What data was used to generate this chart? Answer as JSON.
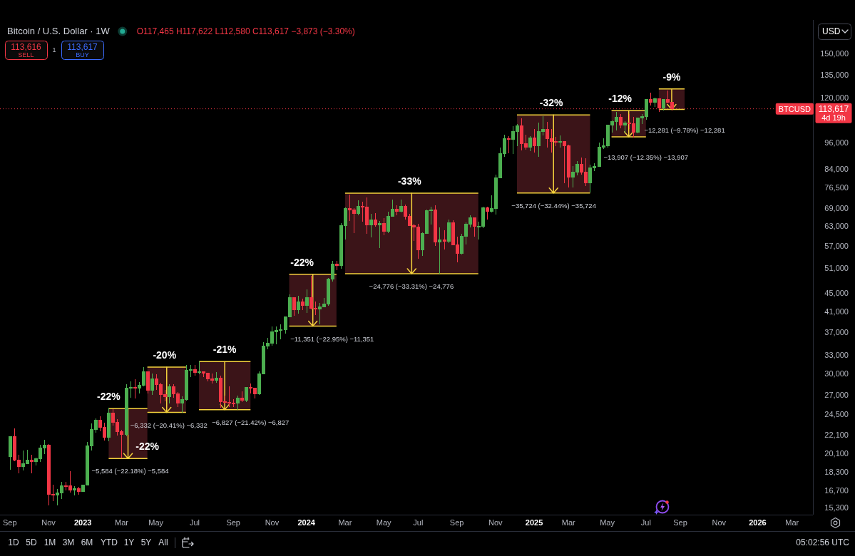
{
  "chart_data": {
    "type": "candlestick",
    "title": "Bitcoin / U.S. Dollar · 1W",
    "subtitle": "O117,465 H117,622 L112,580 C113,617 −3,873 (−3.30%)",
    "log": true,
    "xlim": [
      "2022-08-20",
      "2026-04-05"
    ],
    "xticks": [
      {
        "value": "2022-09-05",
        "label": "Sep"
      },
      {
        "value": "2022-11-07",
        "label": "Nov"
      },
      {
        "value": "2023-01-02",
        "label": "2023"
      },
      {
        "value": "2023-03-06",
        "label": "Mar"
      },
      {
        "value": "2023-05-01",
        "label": "May"
      },
      {
        "value": "2023-07-03",
        "label": "Jul"
      },
      {
        "value": "2023-09-04",
        "label": "Sep"
      },
      {
        "value": "2023-11-06",
        "label": "Nov"
      },
      {
        "value": "2024-01-01",
        "label": "2024"
      },
      {
        "value": "2024-03-04",
        "label": "Mar"
      },
      {
        "value": "2024-05-06",
        "label": "May"
      },
      {
        "value": "2024-07-01",
        "label": "Jul"
      },
      {
        "value": "2024-09-02",
        "label": "Sep"
      },
      {
        "value": "2024-11-04",
        "label": "Nov"
      },
      {
        "value": "2025-01-06",
        "label": "2025"
      },
      {
        "value": "2025-03-03",
        "label": "Mar"
      },
      {
        "value": "2025-05-05",
        "label": "May"
      },
      {
        "value": "2025-07-07",
        "label": "Jul"
      },
      {
        "value": "2025-09-01",
        "label": "Sep"
      },
      {
        "value": "2025-11-03",
        "label": "Nov"
      },
      {
        "value": "2026-01-05",
        "label": "2026"
      },
      {
        "value": "2026-03-02",
        "label": "Mar"
      }
    ],
    "ylim": [
      14770,
      177600
    ],
    "yticks": [
      {
        "value": 15300,
        "label": "15,300"
      },
      {
        "value": 16700,
        "label": "16,700"
      },
      {
        "value": 18300,
        "label": "18,300"
      },
      {
        "value": 20100,
        "label": "20,100"
      },
      {
        "value": 22100,
        "label": "22,100"
      },
      {
        "value": 24500,
        "label": "24,500"
      },
      {
        "value": 27000,
        "label": "27,000"
      },
      {
        "value": 30000,
        "label": "30,000"
      },
      {
        "value": 33000,
        "label": "33,000"
      },
      {
        "value": 37000,
        "label": "37,000"
      },
      {
        "value": 41000,
        "label": "41,000"
      },
      {
        "value": 45000,
        "label": "45,000"
      },
      {
        "value": 51000,
        "label": "51,000"
      },
      {
        "value": 57000,
        "label": "57,000"
      },
      {
        "value": 63000,
        "label": "63,000"
      },
      {
        "value": 69000,
        "label": "69,000"
      },
      {
        "value": 76500,
        "label": "76,500"
      },
      {
        "value": 84000,
        "label": "84,000"
      },
      {
        "value": 96000,
        "label": "96,000"
      },
      {
        "value": 120000,
        "label": "120,000"
      },
      {
        "value": 135000,
        "label": "135,000"
      },
      {
        "value": 150000,
        "label": "150,000"
      }
    ],
    "series": [
      {
        "type": "line",
        "color": "#f5d33d",
        "x": [
          "2023-02-13",
          "2023-04-17"
        ],
        "values": [
          25176,
          25176
        ],
        "lower": [
          19592,
          19592
        ],
        "upper": [
          25176,
          25176
        ]
      },
      {
        "type": "line",
        "color": "#f5d33d",
        "x": [
          "2023-02-13",
          "2023-04-17"
        ],
        "values": [
          19592,
          19592
        ]
      },
      {
        "type": "line",
        "color": "#f5d33d",
        "x": [
          "2023-04-17",
          "2023-06-19"
        ],
        "values": [
          31024,
          31024
        ],
        "lower": [
          24692,
          24692
        ],
        "upper": [
          31024,
          31024
        ]
      },
      {
        "type": "line",
        "color": "#f5d33d",
        "x": [
          "2023-04-17",
          "2023-06-19"
        ],
        "values": [
          24692,
          24692
        ]
      },
      {
        "type": "line",
        "color": "#f5d33d",
        "x": [
          "2023-07-10",
          "2023-10-02"
        ],
        "values": [
          31872,
          31872
        ],
        "lower": [
          25045,
          25045
        ],
        "upper": [
          31872,
          31872
        ]
      },
      {
        "type": "line",
        "color": "#f5d33d",
        "x": [
          "2023-07-10",
          "2023-10-02"
        ],
        "values": [
          25045,
          25045
        ]
      },
      {
        "type": "line",
        "color": "#f5d33d",
        "x": [
          "2023-12-04",
          "2024-02-19"
        ],
        "values": [
          49460,
          49460
        ],
        "lower": [
          38109,
          38109
        ],
        "upper": [
          49460,
          49460
        ]
      },
      {
        "type": "line",
        "color": "#f5d33d",
        "x": [
          "2023-12-04",
          "2024-02-19"
        ],
        "values": [
          38109,
          38109
        ]
      },
      {
        "type": "line",
        "color": "#f5d33d",
        "x": [
          "2024-03-04",
          "2024-10-07"
        ],
        "values": [
          74380,
          74380
        ],
        "lower": [
          49604,
          49604
        ],
        "upper": [
          74380,
          74380
        ]
      },
      {
        "type": "line",
        "color": "#f5d33d",
        "x": [
          "2024-03-04",
          "2024-10-07"
        ],
        "values": [
          49604,
          49604
        ]
      },
      {
        "type": "line",
        "color": "#f5d33d",
        "x": [
          "2024-12-09",
          "2025-04-07"
        ],
        "values": [
          110123,
          110123
        ],
        "lower": [
          74399,
          74399
        ],
        "upper": [
          110123,
          110123
        ]
      },
      {
        "type": "line",
        "color": "#f5d33d",
        "x": [
          "2024-12-09",
          "2025-04-07"
        ],
        "values": [
          74399,
          74399
        ]
      },
      {
        "type": "line",
        "color": "#f5d33d",
        "x": [
          "2025-05-12",
          "2025-07-07"
        ],
        "values": [
          112607,
          112607
        ],
        "lower": [
          98700,
          98700
        ],
        "upper": [
          112607,
          112607
        ]
      },
      {
        "type": "line",
        "color": "#f5d33d",
        "x": [
          "2025-05-12",
          "2025-07-07"
        ],
        "values": [
          98700,
          98700
        ]
      },
      {
        "type": "line",
        "color": "#f5d33d",
        "x": [
          "2025-07-28",
          "2025-09-08"
        ],
        "values": [
          125573,
          125573
        ],
        "lower": [
          113292,
          113292
        ],
        "upper": [
          125573,
          125573
        ]
      },
      {
        "type": "line",
        "color": "#f5d33d",
        "x": [
          "2025-07-28",
          "2025-09-08"
        ],
        "values": [
          113292,
          113292
        ]
      },
      {
        "x": [
          "2022-09-05",
          "2022-09-12",
          "2022-09-19",
          "2022-09-26",
          "2022-10-03",
          "2022-10-10",
          "2022-10-17",
          "2022-10-24",
          "2022-10-31",
          "2022-11-07",
          "2022-11-14",
          "2022-11-21",
          "2022-11-28",
          "2022-12-05",
          "2022-12-12",
          "2022-12-19",
          "2022-12-26",
          "2023-01-02",
          "2023-01-09",
          "2023-01-16",
          "2023-01-23",
          "2023-01-30",
          "2023-02-06",
          "2023-02-13",
          "2023-02-20",
          "2023-02-27",
          "2023-03-06",
          "2023-03-13",
          "2023-03-20",
          "2023-03-27",
          "2023-04-03",
          "2023-04-10",
          "2023-04-17",
          "2023-04-24",
          "2023-05-01",
          "2023-05-08",
          "2023-05-15",
          "2023-05-22",
          "2023-05-29",
          "2023-06-05",
          "2023-06-12",
          "2023-06-19",
          "2023-06-26",
          "2023-07-03",
          "2023-07-10",
          "2023-07-17",
          "2023-07-24",
          "2023-07-31",
          "2023-08-07",
          "2023-08-14",
          "2023-08-21",
          "2023-08-28",
          "2023-09-04",
          "2023-09-11",
          "2023-09-18",
          "2023-09-25",
          "2023-10-02",
          "2023-10-09",
          "2023-10-16",
          "2023-10-23",
          "2023-10-30",
          "2023-11-06",
          "2023-11-13",
          "2023-11-20",
          "2023-11-27",
          "2023-12-04",
          "2023-12-11",
          "2023-12-18",
          "2023-12-25",
          "2024-01-01",
          "2024-01-08",
          "2024-01-15",
          "2024-01-22",
          "2024-01-29",
          "2024-02-05",
          "2024-02-12",
          "2024-02-19",
          "2024-02-26",
          "2024-03-04",
          "2024-03-11",
          "2024-03-18",
          "2024-03-25",
          "2024-04-01",
          "2024-04-08",
          "2024-04-15",
          "2024-04-22",
          "2024-04-29",
          "2024-05-06",
          "2024-05-13",
          "2024-05-20",
          "2024-05-27",
          "2024-06-03",
          "2024-06-10",
          "2024-06-17",
          "2024-06-24",
          "2024-07-01",
          "2024-07-08",
          "2024-07-15",
          "2024-07-22",
          "2024-07-29",
          "2024-08-05",
          "2024-08-12",
          "2024-08-19",
          "2024-08-26",
          "2024-09-02",
          "2024-09-09",
          "2024-09-16",
          "2024-09-23",
          "2024-09-30",
          "2024-10-07",
          "2024-10-14",
          "2024-10-21",
          "2024-10-28",
          "2024-11-04",
          "2024-11-11",
          "2024-11-18",
          "2024-11-25",
          "2024-12-02",
          "2024-12-09",
          "2024-12-16",
          "2024-12-23",
          "2024-12-30",
          "2025-01-06",
          "2025-01-13",
          "2025-01-20",
          "2025-01-27",
          "2025-02-03",
          "2025-02-10",
          "2025-02-17",
          "2025-02-24",
          "2025-03-03",
          "2025-03-10",
          "2025-03-17",
          "2025-03-24",
          "2025-03-31",
          "2025-04-07",
          "2025-04-14",
          "2025-04-21",
          "2025-04-28",
          "2025-05-05",
          "2025-05-12",
          "2025-05-19",
          "2025-05-26",
          "2025-06-02",
          "2025-06-09",
          "2025-06-16",
          "2025-06-23",
          "2025-06-30",
          "2025-07-07",
          "2025-07-14",
          "2025-07-21",
          "2025-07-28",
          "2025-08-04",
          "2025-08-11",
          "2025-08-18"
        ],
        "ohlc": [
          [
            19800,
            21860,
            18540,
            21830
          ],
          [
            21830,
            22790,
            19330,
            19420
          ],
          [
            19420,
            19950,
            18150,
            18800
          ],
          [
            18800,
            20380,
            18470,
            19050
          ],
          [
            19050,
            20470,
            19030,
            19420
          ],
          [
            19420,
            19950,
            18190,
            19260
          ],
          [
            19260,
            19700,
            18900,
            19570
          ],
          [
            19570,
            21020,
            19240,
            20630
          ],
          [
            20630,
            21480,
            20030,
            20920
          ],
          [
            20920,
            21060,
            15490,
            16330
          ],
          [
            16330,
            17190,
            15820,
            16280
          ],
          [
            16280,
            16790,
            15480,
            16450
          ],
          [
            16450,
            17430,
            16000,
            17100
          ],
          [
            17100,
            17430,
            16700,
            17090
          ],
          [
            17090,
            18380,
            16530,
            16740
          ],
          [
            16740,
            17060,
            16250,
            16840
          ],
          [
            16840,
            16970,
            16330,
            16620
          ],
          [
            16620,
            17180,
            16540,
            17130
          ],
          [
            17130,
            21260,
            17100,
            20880
          ],
          [
            20880,
            23370,
            20400,
            22700
          ],
          [
            22700,
            23960,
            22300,
            23740
          ],
          [
            23740,
            24250,
            22500,
            22940
          ],
          [
            22940,
            23440,
            21450,
            21790
          ],
          [
            21790,
            25250,
            21380,
            24630
          ],
          [
            24630,
            25130,
            23100,
            23500
          ],
          [
            23500,
            23890,
            21980,
            22400
          ],
          [
            22400,
            22600,
            19570,
            22130
          ],
          [
            22130,
            28470,
            21900,
            27950
          ],
          [
            27950,
            28880,
            26600,
            27990
          ],
          [
            27990,
            29190,
            26520,
            27940
          ],
          [
            27940,
            28800,
            27200,
            28330
          ],
          [
            28330,
            31000,
            28170,
            30300
          ],
          [
            30300,
            30320,
            27130,
            27600
          ],
          [
            27600,
            30040,
            26970,
            29240
          ],
          [
            29240,
            29870,
            27700,
            28430
          ],
          [
            28430,
            28640,
            25810,
            27030
          ],
          [
            27030,
            27650,
            26100,
            26750
          ],
          [
            26750,
            28460,
            25870,
            28080
          ],
          [
            28080,
            28450,
            26600,
            27100
          ],
          [
            27100,
            27400,
            25350,
            25840
          ],
          [
            25840,
            26800,
            24700,
            26340
          ],
          [
            26340,
            31400,
            26250,
            30530
          ],
          [
            30530,
            31300,
            29520,
            30590
          ],
          [
            30590,
            31400,
            29700,
            30170
          ],
          [
            30170,
            31870,
            29960,
            30250
          ],
          [
            30250,
            30400,
            29500,
            30080
          ],
          [
            30080,
            30100,
            28900,
            29270
          ],
          [
            29270,
            30050,
            28600,
            29050
          ],
          [
            29050,
            30240,
            28700,
            29300
          ],
          [
            29300,
            29700,
            25300,
            26100
          ],
          [
            26100,
            26830,
            25800,
            26000
          ],
          [
            26000,
            28140,
            25350,
            25850
          ],
          [
            25850,
            26430,
            25360,
            25840
          ],
          [
            25840,
            26880,
            25050,
            26530
          ],
          [
            26530,
            27480,
            26020,
            26250
          ],
          [
            26250,
            28050,
            25980,
            27970
          ],
          [
            27970,
            28580,
            27200,
            27920
          ],
          [
            27920,
            28000,
            26530,
            27150
          ],
          [
            27150,
            30400,
            26970,
            30000
          ],
          [
            30000,
            35200,
            29900,
            34520
          ],
          [
            34520,
            35980,
            33900,
            35030
          ],
          [
            35030,
            37980,
            34550,
            37060
          ],
          [
            37060,
            37980,
            34800,
            37350
          ],
          [
            37350,
            38420,
            35620,
            37450
          ],
          [
            37450,
            40000,
            36700,
            39970
          ],
          [
            39970,
            44700,
            39970,
            43980
          ],
          [
            43980,
            44000,
            40200,
            41350
          ],
          [
            41350,
            44300,
            40550,
            43010
          ],
          [
            43010,
            43800,
            41300,
            42270
          ],
          [
            42270,
            45900,
            40750,
            43950
          ],
          [
            43950,
            49050,
            41500,
            41730
          ],
          [
            41730,
            43200,
            40280,
            41580
          ],
          [
            41580,
            42850,
            38500,
            42030
          ],
          [
            42030,
            43880,
            41880,
            42580
          ],
          [
            42580,
            48600,
            42260,
            48300
          ],
          [
            48300,
            52820,
            47650,
            52140
          ],
          [
            52140,
            52990,
            50550,
            51730
          ],
          [
            51730,
            64000,
            50900,
            63110
          ],
          [
            63110,
            69200,
            59000,
            68950
          ],
          [
            68950,
            73800,
            64600,
            68390
          ],
          [
            68390,
            68920,
            60770,
            67210
          ],
          [
            67210,
            71750,
            66600,
            69650
          ],
          [
            69650,
            71300,
            64500,
            69360
          ],
          [
            69360,
            72800,
            60700,
            63430
          ],
          [
            63430,
            66900,
            59600,
            64940
          ],
          [
            64940,
            67200,
            62800,
            63430
          ],
          [
            63430,
            64750,
            56500,
            63890
          ],
          [
            63890,
            65500,
            60200,
            61480
          ],
          [
            61480,
            67700,
            60750,
            66270
          ],
          [
            66270,
            71950,
            66100,
            68520
          ],
          [
            68520,
            70000,
            66600,
            67750
          ],
          [
            67750,
            71950,
            67600,
            69650
          ],
          [
            69650,
            70200,
            65100,
            66220
          ],
          [
            66220,
            66950,
            63000,
            63200
          ],
          [
            63200,
            63800,
            58400,
            62680
          ],
          [
            62680,
            63800,
            53500,
            55880
          ],
          [
            55880,
            61000,
            54300,
            60810
          ],
          [
            60810,
            68400,
            60650,
            67980
          ],
          [
            67980,
            69400,
            63500,
            68250
          ],
          [
            68250,
            70000,
            57100,
            58160
          ],
          [
            58160,
            62700,
            49600,
            58710
          ],
          [
            58710,
            61800,
            56100,
            58440
          ],
          [
            58440,
            65000,
            57800,
            64130
          ],
          [
            64130,
            64950,
            57200,
            57300
          ],
          [
            57300,
            59800,
            52550,
            54860
          ],
          [
            54860,
            60600,
            54550,
            59960
          ],
          [
            59960,
            64100,
            57500,
            63580
          ],
          [
            63580,
            66500,
            62700,
            65600
          ],
          [
            65600,
            65600,
            59800,
            62880
          ],
          [
            62880,
            64500,
            58900,
            62920
          ],
          [
            62920,
            69500,
            62400,
            69020
          ],
          [
            69020,
            69500,
            65100,
            67970
          ],
          [
            67970,
            73600,
            67500,
            68770
          ],
          [
            68770,
            81500,
            66800,
            80400
          ],
          [
            80400,
            93480,
            80200,
            90590
          ],
          [
            90590,
            99600,
            89400,
            97900
          ],
          [
            97900,
            98900,
            90800,
            97280
          ],
          [
            97280,
            104000,
            90500,
            101270
          ],
          [
            101270,
            105250,
            94200,
            104460
          ],
          [
            104460,
            108350,
            92200,
            95260
          ],
          [
            95260,
            99900,
            92600,
            93700
          ],
          [
            93700,
            98900,
            91900,
            98300
          ],
          [
            98300,
            102700,
            91200,
            94500
          ],
          [
            94500,
            106000,
            89300,
            101300
          ],
          [
            101300,
            109400,
            99500,
            102600
          ],
          [
            102600,
            106500,
            93400,
            97700
          ],
          [
            97700,
            102500,
            91200,
            96470
          ],
          [
            96470,
            98800,
            94100,
            96150
          ],
          [
            96150,
            99500,
            93400,
            96290
          ],
          [
            96290,
            96500,
            78200,
            94270
          ],
          [
            94270,
            95000,
            76600,
            80700
          ],
          [
            80700,
            85300,
            76600,
            82600
          ],
          [
            82600,
            87400,
            81200,
            86080
          ],
          [
            86080,
            88800,
            81600,
            82550
          ],
          [
            82550,
            88500,
            77100,
            78370
          ],
          [
            78370,
            85800,
            74500,
            84540
          ],
          [
            84540,
            86400,
            83100,
            85170
          ],
          [
            85170,
            95800,
            85100,
            93650
          ],
          [
            93650,
            97900,
            92900,
            94300
          ],
          [
            94300,
            104800,
            93400,
            104600
          ],
          [
            104600,
            107100,
            100800,
            106500
          ],
          [
            106500,
            111900,
            102000,
            109000
          ],
          [
            109000,
            110700,
            103100,
            104600
          ],
          [
            104600,
            106800,
            100400,
            105700
          ],
          [
            105700,
            110500,
            102700,
            105500
          ],
          [
            105500,
            108900,
            98200,
            101000
          ],
          [
            101000,
            108500,
            100400,
            108350
          ],
          [
            108350,
            110500,
            105200,
            109200
          ],
          [
            109200,
            119500,
            107500,
            119100
          ],
          [
            119100,
            123200,
            115700,
            117300
          ],
          [
            117300,
            120200,
            114700,
            119400
          ],
          [
            119400,
            119800,
            112000,
            114200
          ],
          [
            114200,
            119400,
            112700,
            119300
          ],
          [
            119300,
            124500,
            116800,
            117465
          ],
          [
            117465,
            117622,
            112580,
            113617
          ]
        ],
        "colors": [
          "#4caf50",
          "#f23645",
          "#f23645",
          "#4caf50",
          "#4caf50",
          "#f23645",
          "#4caf50",
          "#4caf50",
          "#4caf50",
          "#f23645",
          "#f23645",
          "#4caf50",
          "#4caf50",
          "#f23645",
          "#f23645",
          "#4caf50",
          "#f23645",
          "#4caf50",
          "#4caf50",
          "#4caf50",
          "#4caf50",
          "#f23645",
          "#f23645",
          "#4caf50",
          "#f23645",
          "#f23645",
          "#f23645",
          "#4caf50",
          "#4caf50",
          "#f23645",
          "#4caf50",
          "#4caf50",
          "#f23645",
          "#4caf50",
          "#f23645",
          "#f23645",
          "#f23645",
          "#4caf50",
          "#f23645",
          "#f23645",
          "#4caf50",
          "#4caf50",
          "#4caf50",
          "#f23645",
          "#4caf50",
          "#f23645",
          "#f23645",
          "#f23645",
          "#4caf50",
          "#f23645",
          "#f23645",
          "#f23645",
          "#f23645",
          "#4caf50",
          "#f23645",
          "#4caf50",
          "#f23645",
          "#f23645",
          "#4caf50",
          "#4caf50",
          "#4caf50",
          "#4caf50",
          "#4caf50",
          "#4caf50",
          "#4caf50",
          "#4caf50",
          "#f23645",
          "#4caf50",
          "#f23645",
          "#4caf50",
          "#f23645",
          "#f23645",
          "#4caf50",
          "#4caf50",
          "#4caf50",
          "#4caf50",
          "#f23645",
          "#4caf50",
          "#4caf50",
          "#f23645",
          "#f23645",
          "#4caf50",
          "#f23645",
          "#f23645",
          "#4caf50",
          "#f23645",
          "#4caf50",
          "#f23645",
          "#4caf50",
          "#4caf50",
          "#f23645",
          "#4caf50",
          "#f23645",
          "#f23645",
          "#f23645",
          "#f23645",
          "#4caf50",
          "#4caf50",
          "#4caf50",
          "#f23645",
          "#4caf50",
          "#f23645",
          "#4caf50",
          "#f23645",
          "#f23645",
          "#4caf50",
          "#4caf50",
          "#4caf50",
          "#f23645",
          "#4caf50",
          "#4caf50",
          "#f23645",
          "#4caf50",
          "#4caf50",
          "#4caf50",
          "#4caf50",
          "#f23645",
          "#4caf50",
          "#4caf50",
          "#f23645",
          "#f23645",
          "#4caf50",
          "#f23645",
          "#4caf50",
          "#4caf50",
          "#f23645",
          "#f23645",
          "#f23645",
          "#4caf50",
          "#f23645",
          "#f23645",
          "#4caf50",
          "#4caf50",
          "#f23645",
          "#f23645",
          "#4caf50",
          "#4caf50",
          "#4caf50",
          "#4caf50",
          "#4caf50",
          "#4caf50",
          "#4caf50",
          "#f23645",
          "#4caf50",
          "#f23645",
          "#f23645",
          "#4caf50",
          "#4caf50",
          "#4caf50",
          "#f23645",
          "#4caf50",
          "#f23645",
          "#4caf50",
          "#f23645",
          "#f23645"
        ]
      }
    ],
    "ref_lines": [
      {
        "axis": "y",
        "value": 113617,
        "label": "BTCUSD",
        "color": "#f23645",
        "line_style": "dotted"
      }
    ],
    "annotations": [
      {
        "text": "-22%",
        "x": "2023-02-13",
        "y": 25176
      },
      {
        "text": "-20%",
        "x": "2023-05-15",
        "y": 31024
      },
      {
        "text": "-21%",
        "x": "2023-08-21",
        "y": 31872
      },
      {
        "text": "-22%",
        "x": "2023-12-25",
        "y": 49460
      },
      {
        "text": "-33%",
        "x": "2024-06-17",
        "y": 74380
      },
      {
        "text": "-32%",
        "x": "2025-02-03",
        "y": 110123
      },
      {
        "text": "-12%",
        "x": "2025-05-26",
        "y": 112607
      },
      {
        "text": "-9%",
        "x": "2025-08-18",
        "y": 125573
      },
      {
        "text": "-22%",
        "x": "2023-04-17",
        "y": 19592
      },
      {
        "text": "−5,584 (−22.18%) −5,584",
        "x": "2023-03-20",
        "y": 19592
      },
      {
        "text": "−6,332 (−20.41%) −6,332",
        "x": "2023-05-22",
        "y": 24692
      },
      {
        "text": "−6,827 (−21.42%) −6,827",
        "x": "2023-10-02",
        "y": 25045
      },
      {
        "text": "−11,351 (−22.95%) −11,351",
        "x": "2024-02-12",
        "y": 38109
      },
      {
        "text": "−24,776 (−33.31%) −24,776",
        "x": "2024-06-20",
        "y": 49604
      },
      {
        "text": "−35,724 (−32.44%) −35,724",
        "x": "2025-02-07",
        "y": 74399
      },
      {
        "text": "−13,907 (−12.35%) −13,907",
        "x": "2025-07-07",
        "y": 98700
      },
      {
        "text": "−12,281 (−9.78%) −12,281",
        "x": "2025-09-08",
        "y": 113292
      },
      "113,616",
      "SELL",
      "1",
      "113,617",
      "BUY",
      "USD",
      "4d 19h",
      "1D",
      "5D",
      "1M",
      "3M",
      "6M",
      "YTD",
      "1Y",
      "5Y",
      "All",
      "05:02:56 UTC"
    ]
  }
}
